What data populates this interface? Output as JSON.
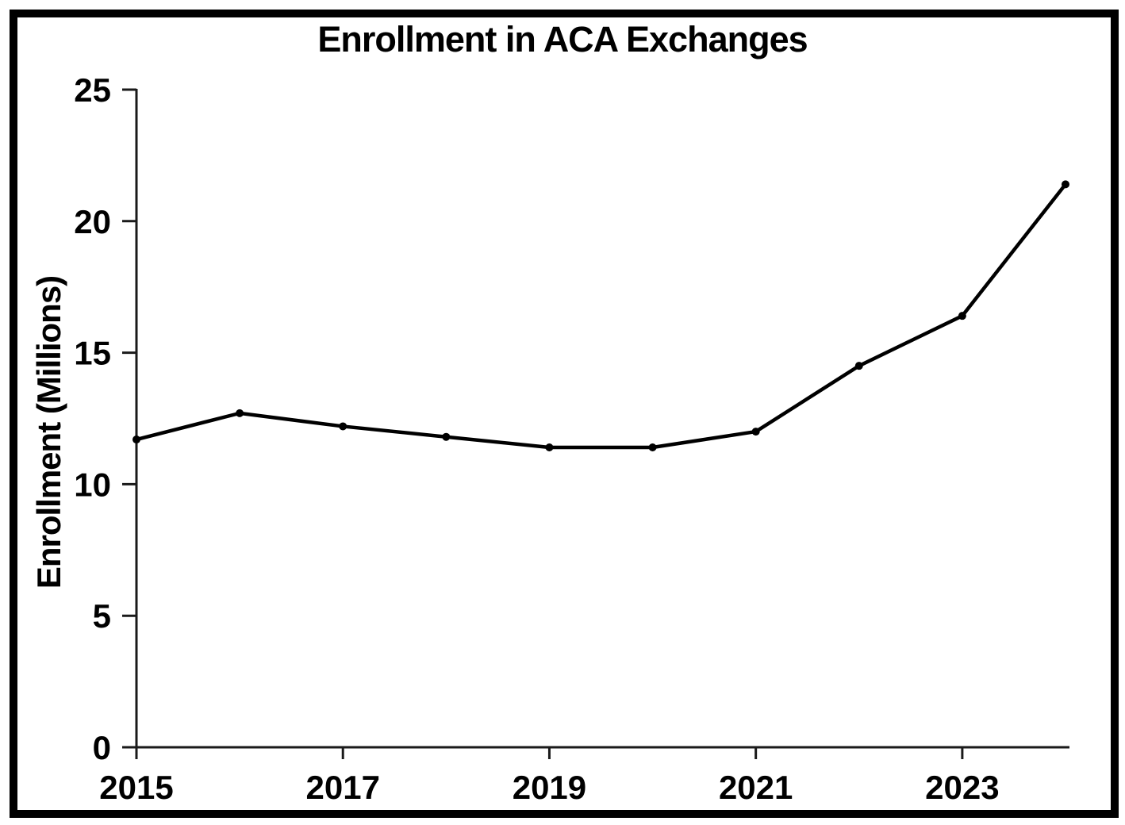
{
  "chart_data": {
    "type": "line",
    "title": "Enrollment in ACA Exchanges",
    "xlabel": "",
    "ylabel": "Enrollment (Millions)",
    "x": [
      2015,
      2016,
      2017,
      2018,
      2019,
      2020,
      2021,
      2022,
      2023,
      2024
    ],
    "series": [
      {
        "name": "Enrollment",
        "values": [
          11.7,
          12.7,
          12.2,
          11.8,
          11.4,
          11.4,
          12.0,
          14.5,
          16.4,
          21.4
        ]
      }
    ],
    "ylim": [
      0,
      25
    ],
    "xlim": [
      2015,
      2024
    ],
    "yticks": [
      0,
      5,
      10,
      15,
      20,
      25
    ],
    "xticks": [
      2015,
      2017,
      2019,
      2021,
      2023
    ],
    "grid": false,
    "legend": "none",
    "marker": "circle",
    "line_color": "#000000",
    "marker_color": "#000000"
  },
  "colors": {
    "background": "#ffffff",
    "frame_border": "#000000",
    "axis": "#1a1a1a",
    "text": "#000000"
  }
}
